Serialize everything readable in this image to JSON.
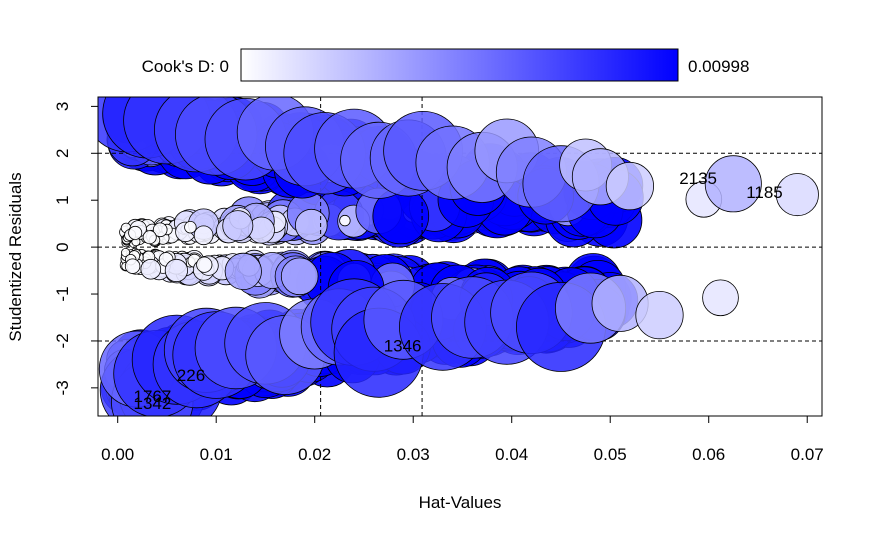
{
  "chart_data": {
    "type": "scatter",
    "xlabel": "Hat-Values",
    "ylabel": "Studentized Residuals",
    "xlim": [
      -0.002,
      0.0715
    ],
    "ylim": [
      -3.6,
      3.2
    ],
    "x_ticks": [
      0.0,
      0.01,
      0.02,
      0.03,
      0.04,
      0.05,
      0.06,
      0.07
    ],
    "x_tick_labels": [
      "0.00",
      "0.01",
      "0.02",
      "0.03",
      "0.04",
      "0.05",
      "0.06",
      "0.07"
    ],
    "y_ticks": [
      -3,
      -2,
      -1,
      0,
      1,
      2,
      3
    ],
    "y_tick_labels": [
      "-3",
      "-2",
      "-1",
      "0",
      "1",
      "2",
      "3"
    ],
    "reference_lines": {
      "h": [
        -2,
        0,
        2
      ],
      "v": [
        0.0206,
        0.0309
      ]
    },
    "colorbar": {
      "label": "Cook's D: 0",
      "max_label": "0.00998",
      "min": 0,
      "max": 0.00998,
      "color_low": "#ffffff",
      "color_high": "#0000ff"
    },
    "points": [
      {
        "x": 0.0025,
        "y": -3.05,
        "d": 0.0075
      },
      {
        "x": 0.0045,
        "y": -3.1,
        "d": 0.008
      },
      {
        "x": 0.006,
        "y": -2.95,
        "d": 0.009
      },
      {
        "x": 0.0035,
        "y": -3.3,
        "d": 0.007
      },
      {
        "x": 0.002,
        "y": -2.6,
        "d": 0.006
      },
      {
        "x": 0.004,
        "y": -2.7,
        "d": 0.008
      },
      {
        "x": 0.006,
        "y": -2.4,
        "d": 0.0085
      },
      {
        "x": 0.008,
        "y": -2.5,
        "d": 0.008
      },
      {
        "x": 0.009,
        "y": -2.2,
        "d": 0.0075
      },
      {
        "x": 0.01,
        "y": -2.3,
        "d": 0.008
      },
      {
        "x": 0.012,
        "y": -2.15,
        "d": 0.007
      },
      {
        "x": 0.015,
        "y": -2.05,
        "d": 0.007
      },
      {
        "x": 0.017,
        "y": -2.3,
        "d": 0.0065
      },
      {
        "x": 0.02,
        "y": -1.85,
        "d": 0.005
      },
      {
        "x": 0.0225,
        "y": -1.7,
        "d": 0.006
      },
      {
        "x": 0.024,
        "y": -1.6,
        "d": 0.008
      },
      {
        "x": 0.026,
        "y": -1.75,
        "d": 0.0075
      },
      {
        "x": 0.0265,
        "y": -2.25,
        "d": 0.0085
      },
      {
        "x": 0.029,
        "y": -1.55,
        "d": 0.0065
      },
      {
        "x": 0.033,
        "y": -1.7,
        "d": 0.008
      },
      {
        "x": 0.036,
        "y": -1.5,
        "d": 0.007
      },
      {
        "x": 0.0395,
        "y": -1.6,
        "d": 0.0075
      },
      {
        "x": 0.042,
        "y": -1.4,
        "d": 0.007
      },
      {
        "x": 0.045,
        "y": -1.7,
        "d": 0.0085
      },
      {
        "x": 0.048,
        "y": -1.3,
        "d": 0.005
      },
      {
        "x": 0.051,
        "y": -1.2,
        "d": 0.003
      },
      {
        "x": 0.055,
        "y": -1.45,
        "d": 0.002
      },
      {
        "x": 0.0612,
        "y": -1.08,
        "d": 0.001
      },
      {
        "x": 0.001,
        "y": 2.95,
        "d": 0.008
      },
      {
        "x": 0.003,
        "y": 2.85,
        "d": 0.0085
      },
      {
        "x": 0.005,
        "y": 2.7,
        "d": 0.008
      },
      {
        "x": 0.008,
        "y": 2.5,
        "d": 0.0075
      },
      {
        "x": 0.01,
        "y": 2.4,
        "d": 0.007
      },
      {
        "x": 0.013,
        "y": 2.3,
        "d": 0.007
      },
      {
        "x": 0.016,
        "y": 2.45,
        "d": 0.006
      },
      {
        "x": 0.019,
        "y": 2.15,
        "d": 0.0065
      },
      {
        "x": 0.021,
        "y": 2.0,
        "d": 0.007
      },
      {
        "x": 0.024,
        "y": 2.1,
        "d": 0.0065
      },
      {
        "x": 0.0265,
        "y": 1.85,
        "d": 0.006
      },
      {
        "x": 0.0295,
        "y": 1.9,
        "d": 0.006
      },
      {
        "x": 0.031,
        "y": 2.05,
        "d": 0.0065
      },
      {
        "x": 0.034,
        "y": 1.8,
        "d": 0.0055
      },
      {
        "x": 0.037,
        "y": 1.7,
        "d": 0.005
      },
      {
        "x": 0.0395,
        "y": 2.05,
        "d": 0.004
      },
      {
        "x": 0.042,
        "y": 1.6,
        "d": 0.005
      },
      {
        "x": 0.045,
        "y": 1.35,
        "d": 0.006
      },
      {
        "x": 0.0475,
        "y": 1.75,
        "d": 0.0025
      },
      {
        "x": 0.049,
        "y": 1.5,
        "d": 0.003
      },
      {
        "x": 0.052,
        "y": 1.3,
        "d": 0.002
      },
      {
        "x": 0.0595,
        "y": 1.02,
        "d": 0.001
      },
      {
        "x": 0.0625,
        "y": 1.35,
        "d": 0.003
      },
      {
        "x": 0.069,
        "y": 1.12,
        "d": 0.0015
      }
    ],
    "point_labels": [
      {
        "text": "2135",
        "x": 0.057,
        "y": 1.35
      },
      {
        "text": "1185",
        "x": 0.0638,
        "y": 1.05
      },
      {
        "text": "1346",
        "x": 0.027,
        "y": -2.22
      },
      {
        "text": "226",
        "x": 0.006,
        "y": -2.85
      },
      {
        "text": "1767",
        "x": 0.0016,
        "y": -3.3
      },
      {
        "text": "1342",
        "x": 0.0016,
        "y": -3.45
      }
    ]
  }
}
